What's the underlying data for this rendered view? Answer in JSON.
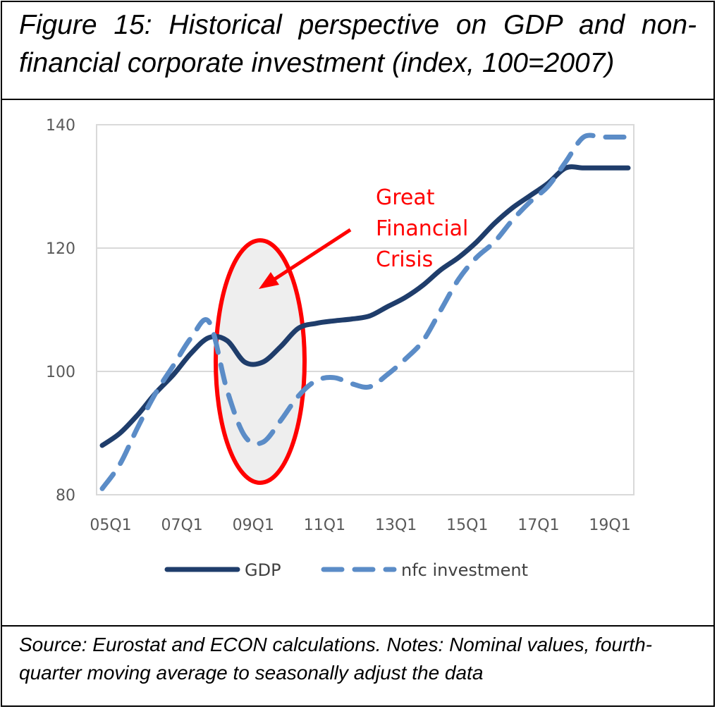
{
  "figure": {
    "title": "Figure 15: Historical perspective on GDP and non-financial corporate investment (index, 100=2007)",
    "source": "Source: Eurostat and ECON calculations. Notes: Nominal values, fourth-quarter moving average to seasonally adjust the data"
  },
  "colors": {
    "gdp": "#1f3d6b",
    "nfc": "#5b8cc7",
    "annotation": "#ff0000",
    "ellipse_fill": "#eeeeee",
    "grid": "#d9d9d9"
  },
  "chart_data": {
    "type": "line",
    "ylim": [
      80,
      140
    ],
    "yticks": [
      80,
      100,
      120,
      140
    ],
    "xticks": [
      "05Q1",
      "07Q1",
      "09Q1",
      "11Q1",
      "13Q1",
      "15Q1",
      "17Q1",
      "19Q1"
    ],
    "grid": "horizontal",
    "legend_position": "bottom",
    "annotation": {
      "text_lines": [
        "Great",
        "Financial",
        "Crisis"
      ]
    },
    "series": [
      {
        "name": "GDP",
        "style": "solid",
        "x": [
          "05Q1",
          "05Q3",
          "06Q1",
          "06Q3",
          "07Q1",
          "07Q3",
          "08Q1",
          "08Q3",
          "09Q1",
          "09Q3",
          "10Q1",
          "10Q3",
          "11Q1",
          "11Q3",
          "12Q1",
          "12Q3",
          "13Q1",
          "13Q3",
          "14Q1",
          "14Q3",
          "15Q1",
          "15Q3",
          "16Q1",
          "16Q3",
          "17Q1",
          "17Q3",
          "18Q1",
          "18Q3",
          "19Q1",
          "19Q3",
          "19Q4"
        ],
        "values": [
          88,
          90,
          93,
          96.5,
          99.5,
          103,
          105.5,
          105,
          101.5,
          101.5,
          104,
          107,
          107.8,
          108.2,
          108.5,
          109,
          110.5,
          112,
          114,
          116.5,
          118.5,
          121,
          124,
          126.5,
          128.5,
          130.5,
          133,
          133,
          133,
          133,
          133
        ]
      },
      {
        "name": "nfc investment",
        "style": "dashed",
        "x": [
          "05Q1",
          "05Q3",
          "06Q1",
          "06Q3",
          "07Q1",
          "07Q3",
          "08Q1",
          "08Q3",
          "09Q1",
          "09Q3",
          "10Q1",
          "10Q3",
          "11Q1",
          "11Q3",
          "12Q1",
          "12Q3",
          "13Q1",
          "13Q3",
          "14Q1",
          "14Q3",
          "15Q1",
          "15Q3",
          "16Q1",
          "16Q3",
          "17Q1",
          "17Q3",
          "18Q1",
          "18Q3",
          "19Q1",
          "19Q3",
          "19Q4"
        ],
        "values": [
          81,
          85,
          91,
          96.5,
          101,
          105.5,
          108,
          97,
          89.5,
          88.5,
          92,
          96,
          98.5,
          99,
          98,
          97.5,
          99.5,
          102,
          105,
          110,
          115,
          118.5,
          121,
          124.5,
          127.5,
          130,
          134,
          138,
          138,
          138,
          138
        ]
      }
    ]
  }
}
